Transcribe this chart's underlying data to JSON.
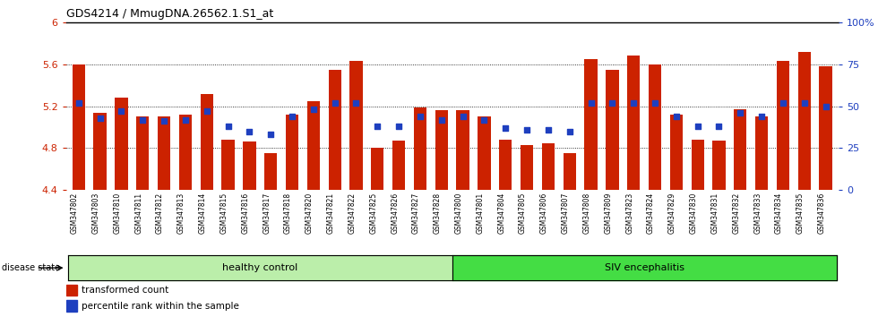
{
  "title": "GDS4214 / MmugDNA.26562.1.S1_at",
  "samples": [
    "GSM347802",
    "GSM347803",
    "GSM347810",
    "GSM347811",
    "GSM347812",
    "GSM347813",
    "GSM347814",
    "GSM347815",
    "GSM347816",
    "GSM347817",
    "GSM347818",
    "GSM347820",
    "GSM347821",
    "GSM347822",
    "GSM347825",
    "GSM347826",
    "GSM347827",
    "GSM347828",
    "GSM347800",
    "GSM347801",
    "GSM347804",
    "GSM347805",
    "GSM347806",
    "GSM347807",
    "GSM347808",
    "GSM347809",
    "GSM347823",
    "GSM347824",
    "GSM347829",
    "GSM347830",
    "GSM347831",
    "GSM347832",
    "GSM347833",
    "GSM347834",
    "GSM347835",
    "GSM347836"
  ],
  "bar_values": [
    5.6,
    5.14,
    5.28,
    5.1,
    5.1,
    5.12,
    5.32,
    4.88,
    4.86,
    4.75,
    5.12,
    5.25,
    5.55,
    5.63,
    4.8,
    4.87,
    5.19,
    5.16,
    5.16,
    5.1,
    4.88,
    4.83,
    4.85,
    4.75,
    5.65,
    5.55,
    5.68,
    5.6,
    5.12,
    4.88,
    4.87,
    5.17,
    5.1,
    5.63,
    5.72,
    5.58
  ],
  "percentile_values": [
    52,
    43,
    47,
    42,
    41,
    42,
    47,
    38,
    35,
    33,
    44,
    48,
    52,
    52,
    38,
    38,
    44,
    42,
    44,
    42,
    37,
    36,
    36,
    35,
    52,
    52,
    52,
    52,
    44,
    38,
    38,
    46,
    44,
    52,
    52,
    50
  ],
  "n_healthy": 18,
  "n_siv": 18,
  "ymin": 4.4,
  "ymax": 6.0,
  "yticks": [
    4.4,
    4.8,
    5.2,
    5.6,
    6.0
  ],
  "ytick_labels": [
    "4.4",
    "4.8",
    "5.2",
    "5.6",
    "6"
  ],
  "right_yticks": [
    0,
    25,
    50,
    75,
    100
  ],
  "right_ytick_labels": [
    "0",
    "25",
    "50",
    "75",
    "100%"
  ],
  "bar_color": "#CC2200",
  "dot_color": "#1E3FBF",
  "healthy_color": "#BBEEAA",
  "siv_color": "#44DD44",
  "healthy_label": "healthy control",
  "siv_label": "SIV encephalitis",
  "disease_state_label": "disease state",
  "legend_bar_label": "transformed count",
  "legend_dot_label": "percentile rank within the sample",
  "xticklabel_bg": "#CCCCCC",
  "dotted_lines": [
    4.8,
    5.2,
    5.6
  ]
}
